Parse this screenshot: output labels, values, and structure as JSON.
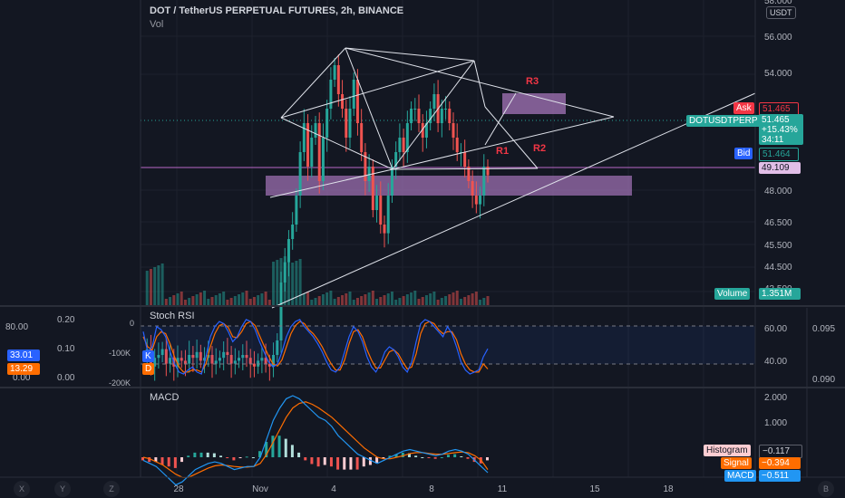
{
  "header": {
    "title": "DOT / TetherUS PERPETUAL FUTURES, 2h, BINANCE",
    "vol_label": "Vol",
    "currency": "USDT"
  },
  "chart_data": [
    {
      "type": "candlestick",
      "title": "DOT / TetherUS PERPETUAL FUTURES, 2h, BINANCE",
      "y_ticks": [
        "58.000",
        "56.000",
        "54.000",
        "48.000",
        "46.500",
        "45.500",
        "44.500",
        "43.500"
      ],
      "x_ticks": [
        "28",
        "Nov",
        "4",
        "8",
        "11",
        "15",
        "18"
      ],
      "annotations": [
        "R1",
        "R2",
        "R3"
      ],
      "ohlc_path": [
        44.8,
        45.2,
        44.6,
        44.9,
        45.0,
        45.2,
        44.7,
        44.9,
        44.6,
        44.9,
        44.8,
        44.7,
        45.0,
        44.9,
        45.1,
        44.8,
        44.9,
        45.0,
        44.7,
        44.8,
        44.9,
        45.1,
        45.0,
        44.7,
        44.8,
        44.9,
        45.0,
        44.9,
        44.7,
        44.6,
        44.8,
        44.9,
        44.7,
        44.6,
        45.0,
        45.5,
        47.5,
        48.2,
        49.0,
        49.5,
        50.5,
        52.0,
        53.0,
        51.5,
        52.5,
        53.0,
        51.0,
        52.5,
        53.5,
        54.5,
        55.0,
        54.0,
        53.5,
        52.5,
        53.5,
        54.5,
        53.0,
        52.0,
        51.0,
        51.5,
        50.0,
        50.5,
        49.5,
        49.2,
        50.5,
        51.5,
        52.0,
        52.5,
        52.0,
        53.0,
        53.5,
        53.5,
        53.0,
        52.5,
        53.0,
        53.5,
        54.0,
        53.0,
        53.5,
        53.5,
        53.0,
        52.5,
        52.0,
        52.0,
        51.5,
        51.0,
        50.5,
        50.2,
        50.5,
        51.5,
        51.2
      ],
      "ask": {
        "label": "Ask",
        "value": "51.465"
      },
      "symbol": {
        "label": "DOTUSDTPERP",
        "price": "51.465",
        "change": "+15.43%",
        "countdown": "34:11"
      },
      "bid": {
        "label": "Bid",
        "value": "51.464"
      },
      "level": "49.109",
      "volume": {
        "label": "Volume",
        "value": "1.351M"
      }
    },
    {
      "type": "line",
      "title": "Stoch RSI",
      "series": [
        {
          "name": "K",
          "value": "33.01",
          "color": "#2962ff"
        },
        {
          "name": "D",
          "value": "13.29",
          "color": "#ff6d00"
        }
      ],
      "y_ticks": [
        "60.00",
        "40.00"
      ],
      "left_ticks": [
        "80.00",
        "0.20",
        "0.10",
        "0.00"
      ],
      "volume_ticks": [
        "0",
        "-100K",
        "-200K"
      ],
      "right_outer_ticks": [
        "0.095",
        "0.090"
      ],
      "k_values": [
        50,
        30,
        35,
        55,
        52,
        45,
        30,
        18,
        10,
        8,
        12,
        15,
        10,
        8,
        25,
        45,
        55,
        60,
        58,
        50,
        40,
        45,
        55,
        62,
        60,
        52,
        40,
        30,
        20,
        15,
        18,
        30,
        45,
        55,
        60,
        62,
        55,
        50,
        45,
        38,
        30,
        20,
        12,
        10,
        15,
        30,
        45,
        55,
        50,
        40,
        25,
        15,
        10,
        18,
        30,
        35,
        32,
        25,
        15,
        10,
        20,
        40,
        58,
        62,
        60,
        55,
        50,
        45,
        55,
        48,
        35,
        20,
        12,
        8,
        10,
        12,
        25,
        33
      ],
      "d_values": [
        45,
        35,
        32,
        45,
        50,
        48,
        38,
        25,
        15,
        10,
        10,
        12,
        12,
        10,
        18,
        35,
        48,
        56,
        58,
        54,
        45,
        44,
        50,
        58,
        60,
        56,
        46,
        36,
        26,
        18,
        16,
        22,
        35,
        48,
        56,
        60,
        58,
        52,
        48,
        42,
        35,
        26,
        18,
        12,
        12,
        22,
        38,
        50,
        52,
        45,
        32,
        22,
        14,
        14,
        22,
        30,
        32,
        28,
        20,
        13,
        15,
        28,
        48,
        58,
        60,
        58,
        52,
        48,
        50,
        50,
        42,
        28,
        18,
        12,
        10,
        10,
        18,
        13
      ]
    },
    {
      "type": "bar",
      "title": "MACD",
      "y_ticks": [
        "2.000",
        "1.000"
      ],
      "histogram": {
        "label": "Histogram",
        "value": "−0.117"
      },
      "signal": {
        "label": "Signal",
        "value": "−0.394"
      },
      "macd": {
        "label": "MACD",
        "value": "−0.511"
      },
      "macd_values": [
        -0.1,
        -0.2,
        -0.3,
        -0.5,
        -0.7,
        -0.9,
        -0.8,
        -0.6,
        -0.4,
        -0.3,
        -0.2,
        -0.15,
        -0.2,
        -0.3,
        -0.4,
        -0.35,
        -0.3,
        -0.3,
        0.0,
        0.6,
        1.2,
        1.6,
        1.9,
        2.0,
        1.9,
        1.7,
        1.5,
        1.3,
        1.2,
        1.0,
        0.7,
        0.5,
        0.3,
        0.1,
        0.0,
        -0.1,
        -0.2,
        -0.1,
        0.0,
        0.1,
        0.2,
        0.25,
        0.2,
        0.15,
        0.1,
        0.05,
        0.1,
        0.2,
        0.25,
        0.2,
        0.1,
        -0.1,
        -0.3,
        -0.5
      ],
      "signal_values": [
        0.0,
        -0.05,
        -0.15,
        -0.25,
        -0.4,
        -0.55,
        -0.65,
        -0.65,
        -0.55,
        -0.45,
        -0.35,
        -0.28,
        -0.25,
        -0.27,
        -0.3,
        -0.32,
        -0.32,
        -0.3,
        -0.2,
        0.1,
        0.5,
        0.9,
        1.3,
        1.6,
        1.75,
        1.8,
        1.72,
        1.6,
        1.45,
        1.3,
        1.1,
        0.9,
        0.7,
        0.5,
        0.3,
        0.15,
        0.0,
        -0.05,
        -0.05,
        0.0,
        0.05,
        0.12,
        0.15,
        0.15,
        0.12,
        0.1,
        0.1,
        0.12,
        0.15,
        0.17,
        0.15,
        0.05,
        -0.1,
        -0.4
      ]
    }
  ],
  "x_axis_buttons": [
    "X",
    "Y",
    "Z",
    "B"
  ]
}
